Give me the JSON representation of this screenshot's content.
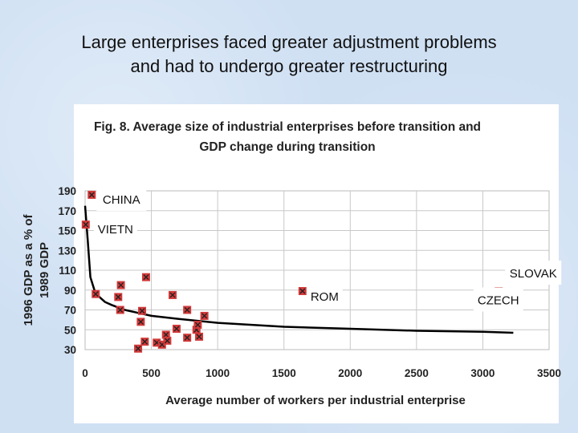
{
  "slide": {
    "title_line1": "Large enterprises faced greater adjustment problems",
    "title_line2": "and had to undergo greater restructuring"
  },
  "chart_data": {
    "type": "scatter",
    "title_line1": "Fig. 8. Average size of industrial enterprises before transition and",
    "title_line2": "GDP change during transition",
    "xlabel": "Average number of workers per industrial enterprise",
    "ylabel_line1": "1996 GDP as a % of",
    "ylabel_line2": "1989 GDP",
    "xlim": [
      0,
      3500
    ],
    "ylim": [
      30,
      190
    ],
    "xticks": [
      0,
      500,
      1000,
      1500,
      2000,
      2500,
      3000,
      3500
    ],
    "yticks": [
      30,
      50,
      70,
      90,
      110,
      130,
      150,
      170,
      190
    ],
    "grid": true,
    "marker_color": "#d33a3a",
    "points": [
      {
        "x": 50,
        "y": 186,
        "label": "CHINA"
      },
      {
        "x": 5,
        "y": 156,
        "label": "VIETN"
      },
      {
        "x": 80,
        "y": 86,
        "label": ""
      },
      {
        "x": 250,
        "y": 83,
        "label": ""
      },
      {
        "x": 270,
        "y": 95,
        "label": ""
      },
      {
        "x": 265,
        "y": 70,
        "label": ""
      },
      {
        "x": 460,
        "y": 103,
        "label": ""
      },
      {
        "x": 430,
        "y": 69,
        "label": ""
      },
      {
        "x": 420,
        "y": 58,
        "label": ""
      },
      {
        "x": 400,
        "y": 31,
        "label": ""
      },
      {
        "x": 450,
        "y": 38,
        "label": ""
      },
      {
        "x": 540,
        "y": 37,
        "label": ""
      },
      {
        "x": 580,
        "y": 35,
        "label": ""
      },
      {
        "x": 610,
        "y": 45,
        "label": ""
      },
      {
        "x": 620,
        "y": 39,
        "label": ""
      },
      {
        "x": 660,
        "y": 85,
        "label": ""
      },
      {
        "x": 690,
        "y": 51,
        "label": ""
      },
      {
        "x": 770,
        "y": 70,
        "label": ""
      },
      {
        "x": 770,
        "y": 42,
        "label": ""
      },
      {
        "x": 840,
        "y": 50,
        "label": ""
      },
      {
        "x": 860,
        "y": 43,
        "label": ""
      },
      {
        "x": 850,
        "y": 55,
        "label": ""
      },
      {
        "x": 900,
        "y": 64,
        "label": ""
      },
      {
        "x": 1640,
        "y": 89,
        "label": "ROM"
      },
      {
        "x": 3120,
        "y": 89,
        "label": "SLOVAK"
      },
      {
        "x": 3220,
        "y": 87,
        "label": "CZECH"
      }
    ],
    "trend_line": {
      "x": [
        0,
        20,
        40,
        70,
        100,
        150,
        200,
        300,
        400,
        500,
        700,
        1000,
        1500,
        2000,
        2500,
        3000,
        3230
      ],
      "y": [
        175,
        140,
        103,
        90,
        84,
        78,
        75,
        70,
        67,
        64,
        61,
        57,
        53,
        51,
        49,
        48,
        47
      ]
    }
  }
}
